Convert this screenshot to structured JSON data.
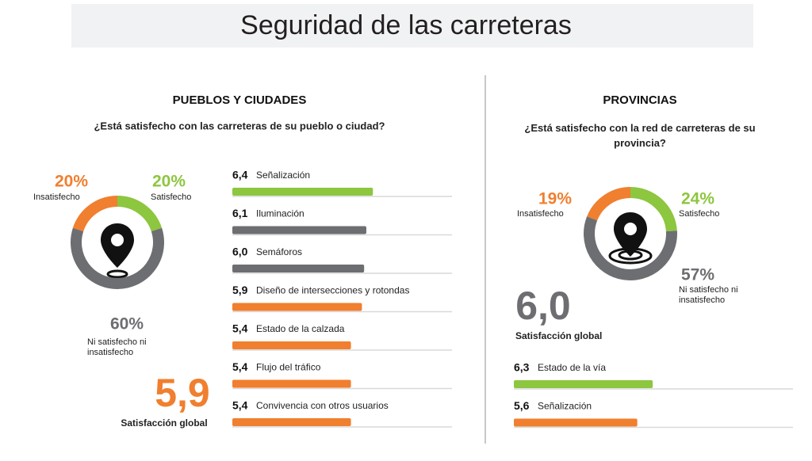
{
  "title": "Seguridad de las carreteras",
  "chart_data": [
    {
      "type": "pie",
      "title": "PUEBLOS Y CIUDADES",
      "subtitle": "¿Está satisfecho con las carreteras de su pueblo o ciudad?",
      "categories": [
        "Insatisfecho",
        "Satisfecho",
        "Ni satisfecho ni insatisfecho"
      ],
      "values": [
        20,
        20,
        60
      ],
      "value_labels": [
        "20%",
        "20%",
        "60%"
      ],
      "colors": [
        "#f07f2f",
        "#8dc63f",
        "#6d6e71"
      ],
      "global_value": 5.9,
      "global_value_label": "5,9",
      "global_label": "Satisfacción global",
      "global_color": "#f07f2f"
    },
    {
      "type": "bar",
      "categories": [
        "Señalización",
        "Iluminación",
        "Semáforos",
        "Diseño de intersecciones y rotondas",
        "Estado de la calzada",
        "Flujo del tráfico",
        "Convivencia con otros usuarios"
      ],
      "values": [
        6.4,
        6.1,
        6.0,
        5.9,
        5.4,
        5.4,
        5.4
      ],
      "value_labels": [
        "6,4",
        "6,1",
        "6,0",
        "5,9",
        "5,4",
        "5,4",
        "5,4"
      ],
      "colors": [
        "#8dc63f",
        "#6d6e71",
        "#6d6e71",
        "#f07f2f",
        "#f07f2f",
        "#f07f2f",
        "#f07f2f"
      ],
      "xlim": [
        0,
        10
      ]
    },
    {
      "type": "pie",
      "title": "PROVINCIAS",
      "subtitle": "¿Está satisfecho con la red de carreteras de su provincia?",
      "categories": [
        "Insatisfecho",
        "Satisfecho",
        "Ni satisfecho ni insatisfecho"
      ],
      "values": [
        19,
        24,
        57
      ],
      "value_labels": [
        "19%",
        "24%",
        "57%"
      ],
      "colors": [
        "#f07f2f",
        "#8dc63f",
        "#6d6e71"
      ],
      "global_value": 6.0,
      "global_value_label": "6,0",
      "global_label": "Satisfacción global",
      "global_color": "#6d6e71"
    },
    {
      "type": "bar",
      "categories": [
        "Estado de la vía",
        "Señalización"
      ],
      "values": [
        6.3,
        5.6
      ],
      "value_labels": [
        "6,3",
        "5,6"
      ],
      "colors": [
        "#8dc63f",
        "#f07f2f"
      ],
      "xlim": [
        0,
        10
      ]
    }
  ]
}
